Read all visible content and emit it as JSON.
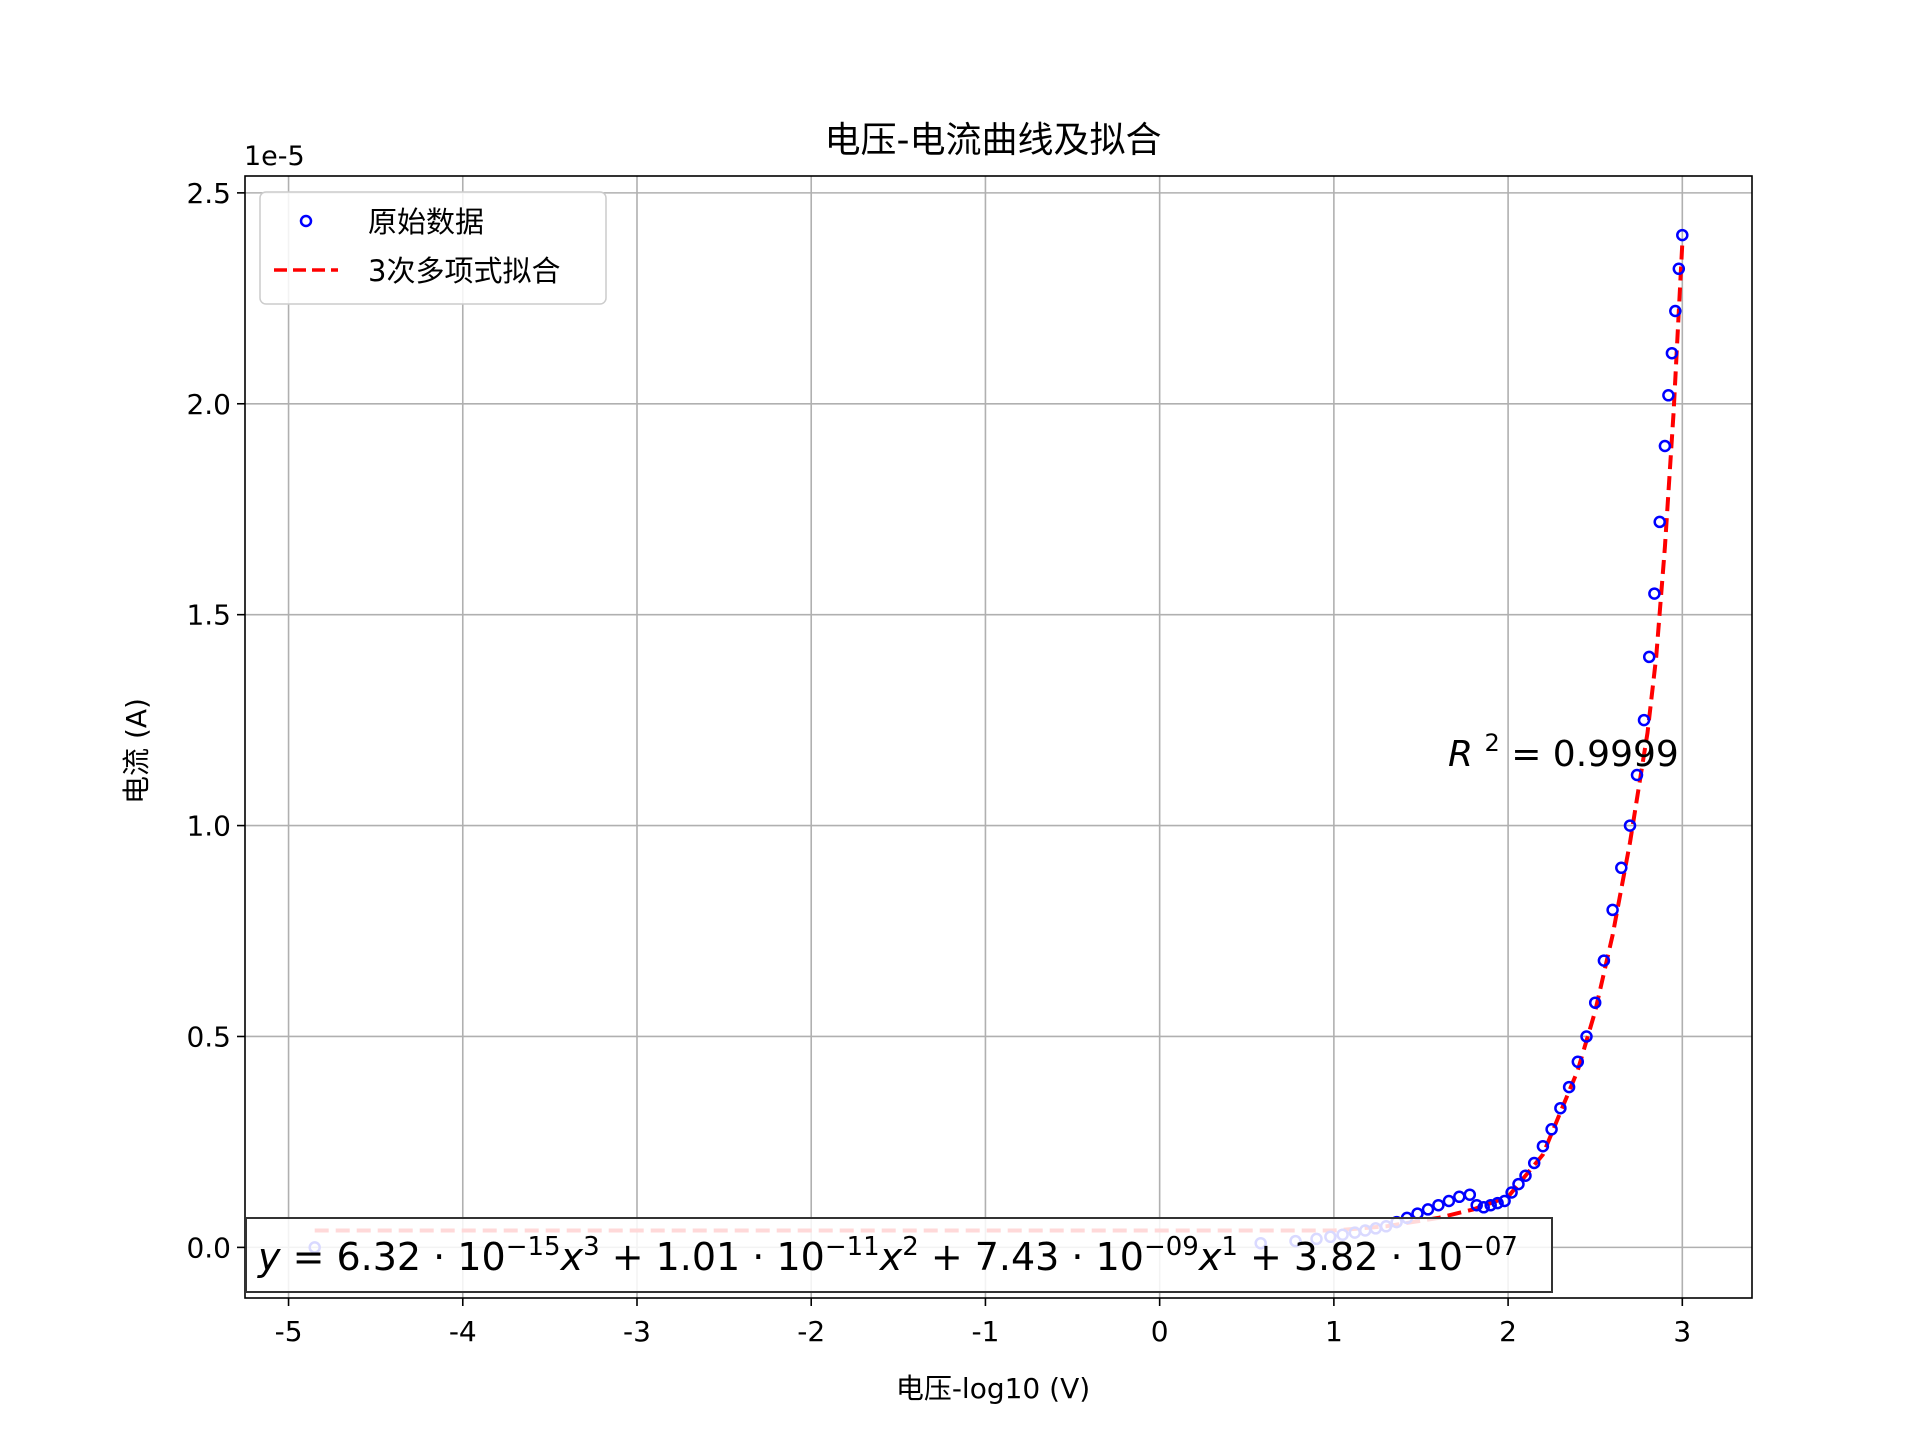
{
  "chart_data": {
    "type": "scatter",
    "title": "电压-电流曲线及拟合",
    "xlabel": "电压-log10 (V)",
    "ylabel": "电流 (A)",
    "y_offset_label": "1e-5",
    "y_scale": 1e-05,
    "xlim": [
      -5.25,
      3.4
    ],
    "ylim": [
      -0.12,
      2.54
    ],
    "x_ticks": [
      -5,
      -4,
      -3,
      -2,
      -1,
      0,
      1,
      2,
      3
    ],
    "x_tick_labels": [
      "-5",
      "-4",
      "-3",
      "-2",
      "-1",
      "0",
      "1",
      "2",
      "3"
    ],
    "y_ticks": [
      0.0,
      0.5,
      1.0,
      1.5,
      2.0,
      2.5
    ],
    "y_tick_labels": [
      "0.0",
      "0.5",
      "1.0",
      "1.5",
      "2.0",
      "2.5"
    ],
    "grid": true,
    "legend_position": "top-left",
    "legend": [
      "原始数据",
      "3次多项式拟合"
    ],
    "colors": {
      "data": "#0000ff",
      "fit": "#ff0000",
      "grid": "#b0b0b0"
    },
    "series": [
      {
        "name": "原始数据",
        "kind": "scatter",
        "x": [
          -4.85,
          0.58,
          0.78,
          0.9,
          0.98,
          1.05,
          1.12,
          1.18,
          1.24,
          1.3,
          1.36,
          1.42,
          1.48,
          1.54,
          1.6,
          1.66,
          1.72,
          1.78,
          1.82,
          1.86,
          1.9,
          1.94,
          1.98,
          2.02,
          2.06,
          2.1,
          2.15,
          2.2,
          2.25,
          2.3,
          2.35,
          2.4,
          2.45,
          2.5,
          2.55,
          2.6,
          2.65,
          2.7,
          2.74,
          2.78,
          2.81,
          2.84,
          2.87,
          2.9,
          2.92,
          2.94,
          2.96,
          2.98,
          3.0
        ],
        "y": [
          0.0,
          0.01,
          0.015,
          0.02,
          0.025,
          0.03,
          0.035,
          0.04,
          0.045,
          0.05,
          0.06,
          0.07,
          0.08,
          0.09,
          0.1,
          0.11,
          0.12,
          0.125,
          0.1,
          0.095,
          0.1,
          0.105,
          0.11,
          0.13,
          0.15,
          0.17,
          0.2,
          0.24,
          0.28,
          0.33,
          0.38,
          0.44,
          0.5,
          0.58,
          0.68,
          0.8,
          0.9,
          1.0,
          1.12,
          1.25,
          1.4,
          1.55,
          1.72,
          1.9,
          2.02,
          2.12,
          2.22,
          2.32,
          2.4
        ]
      },
      {
        "name": "3次多项式拟合",
        "kind": "line",
        "x": [
          -4.85,
          -4.0,
          -3.0,
          -2.0,
          -1.0,
          0.0,
          0.5,
          1.0,
          1.3,
          1.6,
          1.8,
          2.0,
          2.2,
          2.4,
          2.5,
          2.6,
          2.7,
          2.8,
          2.85,
          2.9,
          2.95,
          3.0
        ],
        "y": [
          0.04,
          0.04,
          0.04,
          0.04,
          0.04,
          0.04,
          0.04,
          0.04,
          0.05,
          0.07,
          0.09,
          0.12,
          0.22,
          0.42,
          0.56,
          0.74,
          0.96,
          1.22,
          1.4,
          1.66,
          1.98,
          2.38
        ]
      }
    ],
    "annotations": {
      "r2": {
        "label": "R",
        "sup": "2",
        "text": " = 0.9999"
      },
      "equation": {
        "parts": [
          {
            "t": "y",
            "s": ""
          },
          {
            "t": " = 6.32 · 10",
            "s": "−15"
          },
          {
            "t": "x",
            "s": "3"
          },
          {
            "t": " + 1.01 · 10",
            "s": "−11"
          },
          {
            "t": "x",
            "s": "2"
          },
          {
            "t": " + 7.43 · 10",
            "s": "−09"
          },
          {
            "t": "x",
            "s": "1"
          },
          {
            "t": " + 3.82 · 10",
            "s": "−07"
          }
        ]
      }
    }
  }
}
